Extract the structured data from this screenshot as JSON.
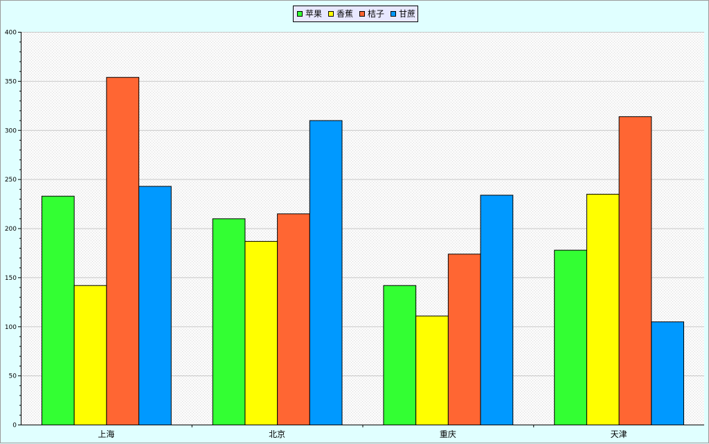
{
  "chart_data": {
    "type": "bar",
    "categories": [
      "上海",
      "北京",
      "重庆",
      "天津"
    ],
    "series": [
      {
        "name": "苹果",
        "values": [
          233,
          210,
          142,
          178
        ],
        "color": "#33ff33"
      },
      {
        "name": "香蕉",
        "values": [
          142,
          187,
          111,
          235
        ],
        "color": "#ffff00"
      },
      {
        "name": "桔子",
        "values": [
          354,
          215,
          174,
          314
        ],
        "color": "#ff6633"
      },
      {
        "name": "甘蔗",
        "values": [
          243,
          310,
          234,
          105
        ],
        "color": "#0099ff"
      }
    ],
    "ylim": [
      0,
      400
    ],
    "yticks": [
      0,
      50,
      100,
      150,
      200,
      250,
      300,
      350,
      400
    ],
    "legend_position": "top-center",
    "grid": true,
    "colors": {
      "background": "#e0ffff",
      "plot_background": "#f6f6f6",
      "grid": "#c8c8c8",
      "legend_background": "#e8e8ff",
      "axis": "#000000"
    }
  }
}
